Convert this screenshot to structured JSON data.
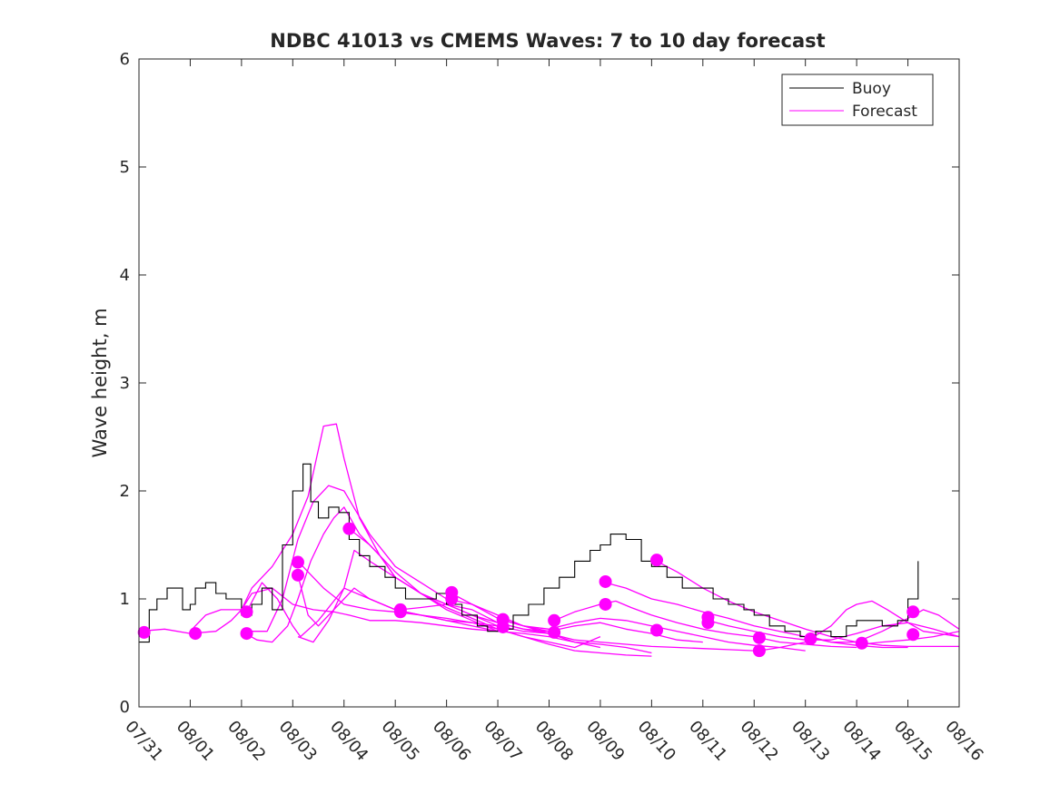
{
  "chart_data": {
    "type": "line",
    "title": "NDBC 41013 vs CMEMS Waves: 7 to 10 day forecast",
    "xlabel": "",
    "ylabel": "Wave height, m",
    "xlim": [
      0,
      16
    ],
    "ylim": [
      0,
      6
    ],
    "yticks": [
      0,
      1,
      2,
      3,
      4,
      5,
      6
    ],
    "xtick_labels": [
      "07/31",
      "08/01",
      "08/02",
      "08/03",
      "08/04",
      "08/05",
      "08/06",
      "08/07",
      "08/08",
      "08/09",
      "08/10",
      "08/11",
      "08/12",
      "08/13",
      "08/14",
      "08/15",
      "08/16"
    ],
    "grid": false,
    "legend": {
      "position": "top-right",
      "entries": [
        "Buoy",
        "Forecast"
      ]
    },
    "colors": {
      "buoy": "#000000",
      "forecast": "#ff00ff",
      "axis": "#262626"
    },
    "buoy": {
      "name": "Buoy",
      "x": [
        0,
        0.2,
        0.35,
        0.55,
        0.85,
        1.0,
        1.1,
        1.3,
        1.5,
        1.7,
        2.0,
        2.2,
        2.4,
        2.6,
        2.8,
        3.0,
        3.2,
        3.35,
        3.5,
        3.7,
        3.9,
        4.1,
        4.3,
        4.5,
        4.8,
        5.0,
        5.2,
        5.5,
        5.8,
        6.0,
        6.3,
        6.6,
        6.8,
        7.0,
        7.3,
        7.6,
        7.9,
        8.2,
        8.5,
        8.8,
        9.0,
        9.2,
        9.5,
        9.8,
        10.0,
        10.3,
        10.6,
        10.9,
        11.2,
        11.5,
        11.8,
        12.0,
        12.3,
        12.6,
        12.9,
        13.2,
        13.5,
        13.8,
        14.0,
        14.2,
        14.5,
        14.8,
        15.0,
        15.2
      ],
      "values": [
        0.6,
        0.9,
        1.0,
        1.1,
        0.9,
        0.95,
        1.1,
        1.15,
        1.05,
        1.0,
        0.85,
        0.95,
        1.1,
        0.9,
        1.5,
        2.0,
        2.25,
        1.9,
        1.75,
        1.85,
        1.8,
        1.55,
        1.4,
        1.3,
        1.2,
        1.1,
        1.0,
        1.0,
        1.05,
        0.95,
        0.85,
        0.75,
        0.7,
        0.72,
        0.85,
        0.95,
        1.1,
        1.2,
        1.35,
        1.45,
        1.5,
        1.6,
        1.55,
        1.35,
        1.3,
        1.2,
        1.1,
        1.1,
        1.0,
        0.95,
        0.9,
        0.85,
        0.75,
        0.7,
        0.65,
        0.7,
        0.65,
        0.75,
        0.8,
        0.8,
        0.75,
        0.8,
        1.0,
        1.35
      ]
    },
    "forecast_series": [
      {
        "x": [
          0,
          0.5,
          1.0,
          1.5,
          1.8,
          2.0,
          2.2,
          2.6,
          3.0,
          3.4,
          3.8,
          4.1,
          4.5,
          5.0,
          5.5,
          6.0,
          6.5,
          7.0
        ],
        "values": [
          0.7,
          0.72,
          0.68,
          0.7,
          0.8,
          0.9,
          1.05,
          1.1,
          0.95,
          0.9,
          0.88,
          0.85,
          0.8,
          0.8,
          0.78,
          0.75,
          0.72,
          0.7
        ]
      },
      {
        "x": [
          1.0,
          1.3,
          1.6,
          2.0,
          2.2,
          2.6,
          3.0,
          3.3,
          3.6,
          3.85,
          4.0,
          4.3,
          4.7,
          5.0,
          5.5,
          6.0,
          6.5,
          7.0
        ],
        "values": [
          0.7,
          0.85,
          0.9,
          0.9,
          1.1,
          1.3,
          1.6,
          1.95,
          2.6,
          2.62,
          2.3,
          1.75,
          1.4,
          1.2,
          1.05,
          0.9,
          0.8,
          0.7
        ]
      },
      {
        "x": [
          2.0,
          2.3,
          2.6,
          2.9,
          3.1,
          3.35,
          3.6,
          3.8,
          4.0,
          4.3,
          4.7,
          5.0,
          5.5,
          6.0,
          6.5,
          7.0
        ],
        "values": [
          0.7,
          0.62,
          0.6,
          0.75,
          1.0,
          1.35,
          1.6,
          1.75,
          1.85,
          1.6,
          1.4,
          1.2,
          1.05,
          0.95,
          0.85,
          0.75
        ]
      },
      {
        "x": [
          2.1,
          2.5,
          2.8,
          3.1,
          3.4,
          3.7,
          4.0,
          4.5,
          5.0,
          5.5,
          6.0,
          6.5,
          7.0,
          7.5,
          8.0
        ],
        "values": [
          0.7,
          0.7,
          1.0,
          1.55,
          1.9,
          2.05,
          2.0,
          1.6,
          1.3,
          1.15,
          1.0,
          0.95,
          0.85,
          0.75,
          0.7
        ]
      },
      {
        "x": [
          2.1,
          2.4,
          2.7,
          3.0,
          3.15,
          3.5,
          4.0,
          4.5,
          5.0,
          5.5,
          6.0,
          6.5,
          7.0,
          7.5,
          8.0,
          8.5,
          9.0
        ],
        "values": [
          0.88,
          1.15,
          1.0,
          0.75,
          0.65,
          0.8,
          1.1,
          1.0,
          0.9,
          0.85,
          0.8,
          0.78,
          0.75,
          0.7,
          0.68,
          0.6,
          0.55
        ]
      },
      {
        "x": [
          3.1,
          3.3,
          3.6,
          4.0,
          4.5,
          5.0,
          5.5,
          6.0,
          6.5,
          7.0,
          7.5,
          8.0,
          8.5,
          9.0,
          9.5,
          10.0
        ],
        "values": [
          1.35,
          1.25,
          1.1,
          0.95,
          0.9,
          0.88,
          0.85,
          0.8,
          0.75,
          0.7,
          0.68,
          0.65,
          0.6,
          0.58,
          0.55,
          0.5
        ]
      },
      {
        "x": [
          3.1,
          3.3,
          3.5,
          3.7,
          4.0,
          4.2,
          4.5,
          5.0,
          5.5,
          6.0,
          6.5,
          7.0,
          7.5,
          8.0,
          8.5,
          9.0
        ],
        "values": [
          1.22,
          0.85,
          0.75,
          0.85,
          1.0,
          1.1,
          1.0,
          0.9,
          0.85,
          0.82,
          0.78,
          0.72,
          0.65,
          0.6,
          0.55,
          0.65
        ]
      },
      {
        "x": [
          3.1,
          3.4,
          3.7,
          4.0,
          4.2,
          4.5,
          5.0,
          5.5,
          6.0,
          6.5,
          7.0,
          7.5,
          8.0
        ],
        "values": [
          0.65,
          0.6,
          0.8,
          1.1,
          1.45,
          1.35,
          1.2,
          1.05,
          0.95,
          0.85,
          0.78,
          0.72,
          0.68
        ]
      },
      {
        "x": [
          4.1,
          4.5,
          5.0,
          5.5,
          6.0,
          6.5,
          7.0,
          7.5,
          8.0,
          8.5,
          9.0,
          9.5,
          10.0
        ],
        "values": [
          1.65,
          1.5,
          1.25,
          1.05,
          0.92,
          0.82,
          0.72,
          0.65,
          0.58,
          0.52,
          0.5,
          0.48,
          0.47
        ]
      },
      {
        "x": [
          5.1,
          5.5,
          6.0,
          6.5,
          7.0,
          7.5,
          8.0,
          8.5,
          9.0,
          9.5,
          10.0,
          10.5,
          11.0
        ],
        "values": [
          0.9,
          0.92,
          0.95,
          0.9,
          0.78,
          0.72,
          0.7,
          0.75,
          0.78,
          0.72,
          0.68,
          0.62,
          0.6
        ]
      },
      {
        "x": [
          6.1,
          6.5,
          7.0,
          7.5,
          8.0,
          8.5,
          9.0,
          9.5,
          10.0,
          10.5,
          11.0,
          11.5,
          12.0
        ],
        "values": [
          1.05,
          0.95,
          0.82,
          0.75,
          0.68,
          0.62,
          0.6,
          0.58,
          0.56,
          0.55,
          0.54,
          0.53,
          0.52
        ]
      },
      {
        "x": [
          7.1,
          7.5,
          8.0,
          8.5,
          9.0,
          9.5,
          10.0,
          10.5,
          11.0,
          11.5,
          12.0,
          12.5,
          13.0
        ],
        "values": [
          0.8,
          0.75,
          0.72,
          0.78,
          0.82,
          0.8,
          0.75,
          0.7,
          0.65,
          0.6,
          0.57,
          0.55,
          0.52
        ]
      },
      {
        "x": [
          8.1,
          8.5,
          9.0,
          9.3,
          9.6,
          10.0,
          10.5,
          11.0,
          11.5,
          12.0,
          12.5,
          13.0,
          13.5,
          14.0
        ],
        "values": [
          0.8,
          0.88,
          0.95,
          0.98,
          0.92,
          0.85,
          0.78,
          0.72,
          0.68,
          0.65,
          0.6,
          0.58,
          0.56,
          0.55
        ]
      },
      {
        "x": [
          9.1,
          9.5,
          10.0,
          10.5,
          11.0,
          11.5,
          12.0,
          12.5,
          13.0,
          13.5,
          14.0,
          14.5,
          15.0
        ],
        "values": [
          1.15,
          1.1,
          1.0,
          0.95,
          0.88,
          0.82,
          0.75,
          0.7,
          0.65,
          0.6,
          0.57,
          0.55,
          0.55
        ]
      },
      {
        "x": [
          10.1,
          10.5,
          11.0,
          11.5,
          12.0,
          12.5,
          13.0,
          13.5,
          14.0,
          14.5,
          15.0,
          15.5,
          16.0
        ],
        "values": [
          1.35,
          1.25,
          1.1,
          0.98,
          0.88,
          0.8,
          0.72,
          0.65,
          0.6,
          0.57,
          0.56,
          0.56,
          0.56
        ]
      },
      {
        "x": [
          11.1,
          11.5,
          12.0,
          12.5,
          13.0,
          13.5,
          14.0,
          14.5,
          15.0,
          15.5,
          16.0
        ],
        "values": [
          0.8,
          0.75,
          0.7,
          0.65,
          0.62,
          0.62,
          0.68,
          0.75,
          0.78,
          0.72,
          0.65
        ]
      },
      {
        "x": [
          12.1,
          12.5,
          13.0,
          13.5,
          13.8,
          14.0,
          14.3,
          14.6,
          15.0,
          15.3,
          15.6,
          16.0
        ],
        "values": [
          0.52,
          0.55,
          0.6,
          0.75,
          0.9,
          0.95,
          0.98,
          0.9,
          0.78,
          0.7,
          0.68,
          0.65
        ]
      },
      {
        "x": [
          13.1,
          13.5,
          14.0,
          14.5,
          15.0,
          15.3,
          15.6,
          16.0
        ],
        "values": [
          0.65,
          0.6,
          0.6,
          0.7,
          0.82,
          0.9,
          0.85,
          0.72
        ]
      },
      {
        "x": [
          14.1,
          14.5,
          15.0,
          15.5,
          16.0
        ],
        "values": [
          0.58,
          0.6,
          0.62,
          0.65,
          0.7
        ]
      }
    ],
    "forecast_markers": {
      "x": [
        0.1,
        1.1,
        2.1,
        2.1,
        3.1,
        3.1,
        4.1,
        5.1,
        5.1,
        6.1,
        6.1,
        7.1,
        7.1,
        8.1,
        8.1,
        9.1,
        9.1,
        10.1,
        10.1,
        11.1,
        11.1,
        12.1,
        12.1,
        13.1,
        14.1,
        15.1,
        15.1
      ],
      "values": [
        0.69,
        0.68,
        0.88,
        0.68,
        1.34,
        1.22,
        1.65,
        0.9,
        0.88,
        1.06,
        1.0,
        0.81,
        0.74,
        0.8,
        0.69,
        1.16,
        0.95,
        1.36,
        0.71,
        0.83,
        0.78,
        0.64,
        0.52,
        0.63,
        0.59,
        0.88,
        0.67
      ]
    }
  }
}
